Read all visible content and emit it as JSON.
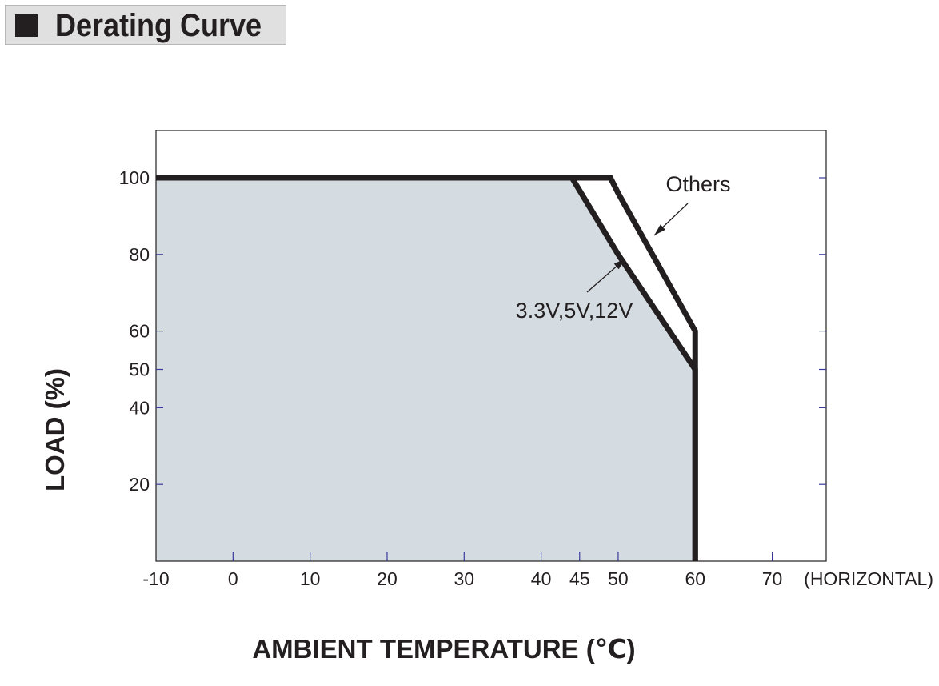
{
  "header": {
    "title": "Derating Curve"
  },
  "chart_data": {
    "type": "area",
    "title": "",
    "xlabel": "AMBIENT TEMPERATURE (℃)",
    "ylabel": "LOAD (%)",
    "x_axis_note": "(HORIZONTAL)",
    "xlim": [
      -10,
      77
    ],
    "ylim": [
      0,
      112
    ],
    "x_ticks": [
      -10,
      0,
      10,
      20,
      30,
      40,
      45,
      50,
      60,
      70
    ],
    "x_tick_labels": [
      "-10",
      "0",
      "10",
      "20",
      "30",
      "40",
      "45",
      "50",
      "60",
      "70"
    ],
    "y_ticks": [
      20,
      40,
      50,
      60,
      80,
      100
    ],
    "y_tick_labels": [
      "20",
      "40",
      "50",
      "60",
      "80",
      "100"
    ],
    "grid": false,
    "series": [
      {
        "name": "3.3V,5V,12V",
        "x": [
          -10,
          0,
          10,
          20,
          30,
          40,
          44,
          50,
          60,
          60
        ],
        "y": [
          100,
          100,
          100,
          100,
          100,
          100,
          100,
          80,
          50,
          0
        ],
        "filled": true
      },
      {
        "name": "Others",
        "x": [
          44,
          49,
          50,
          60,
          60
        ],
        "y": [
          100,
          100,
          96,
          60,
          0
        ],
        "filled": false
      }
    ],
    "annotations": [
      {
        "text": "Others",
        "points_to_series": "Others",
        "at": [
          51,
          89
        ]
      },
      {
        "text": "3.3V,5V,12V",
        "points_to_series": "3.3V,5V,12V",
        "at": [
          48,
          80
        ]
      }
    ],
    "colors": {
      "fill": "#d4dce2",
      "line": "#231f20",
      "tick": "#3a3a9a"
    }
  }
}
